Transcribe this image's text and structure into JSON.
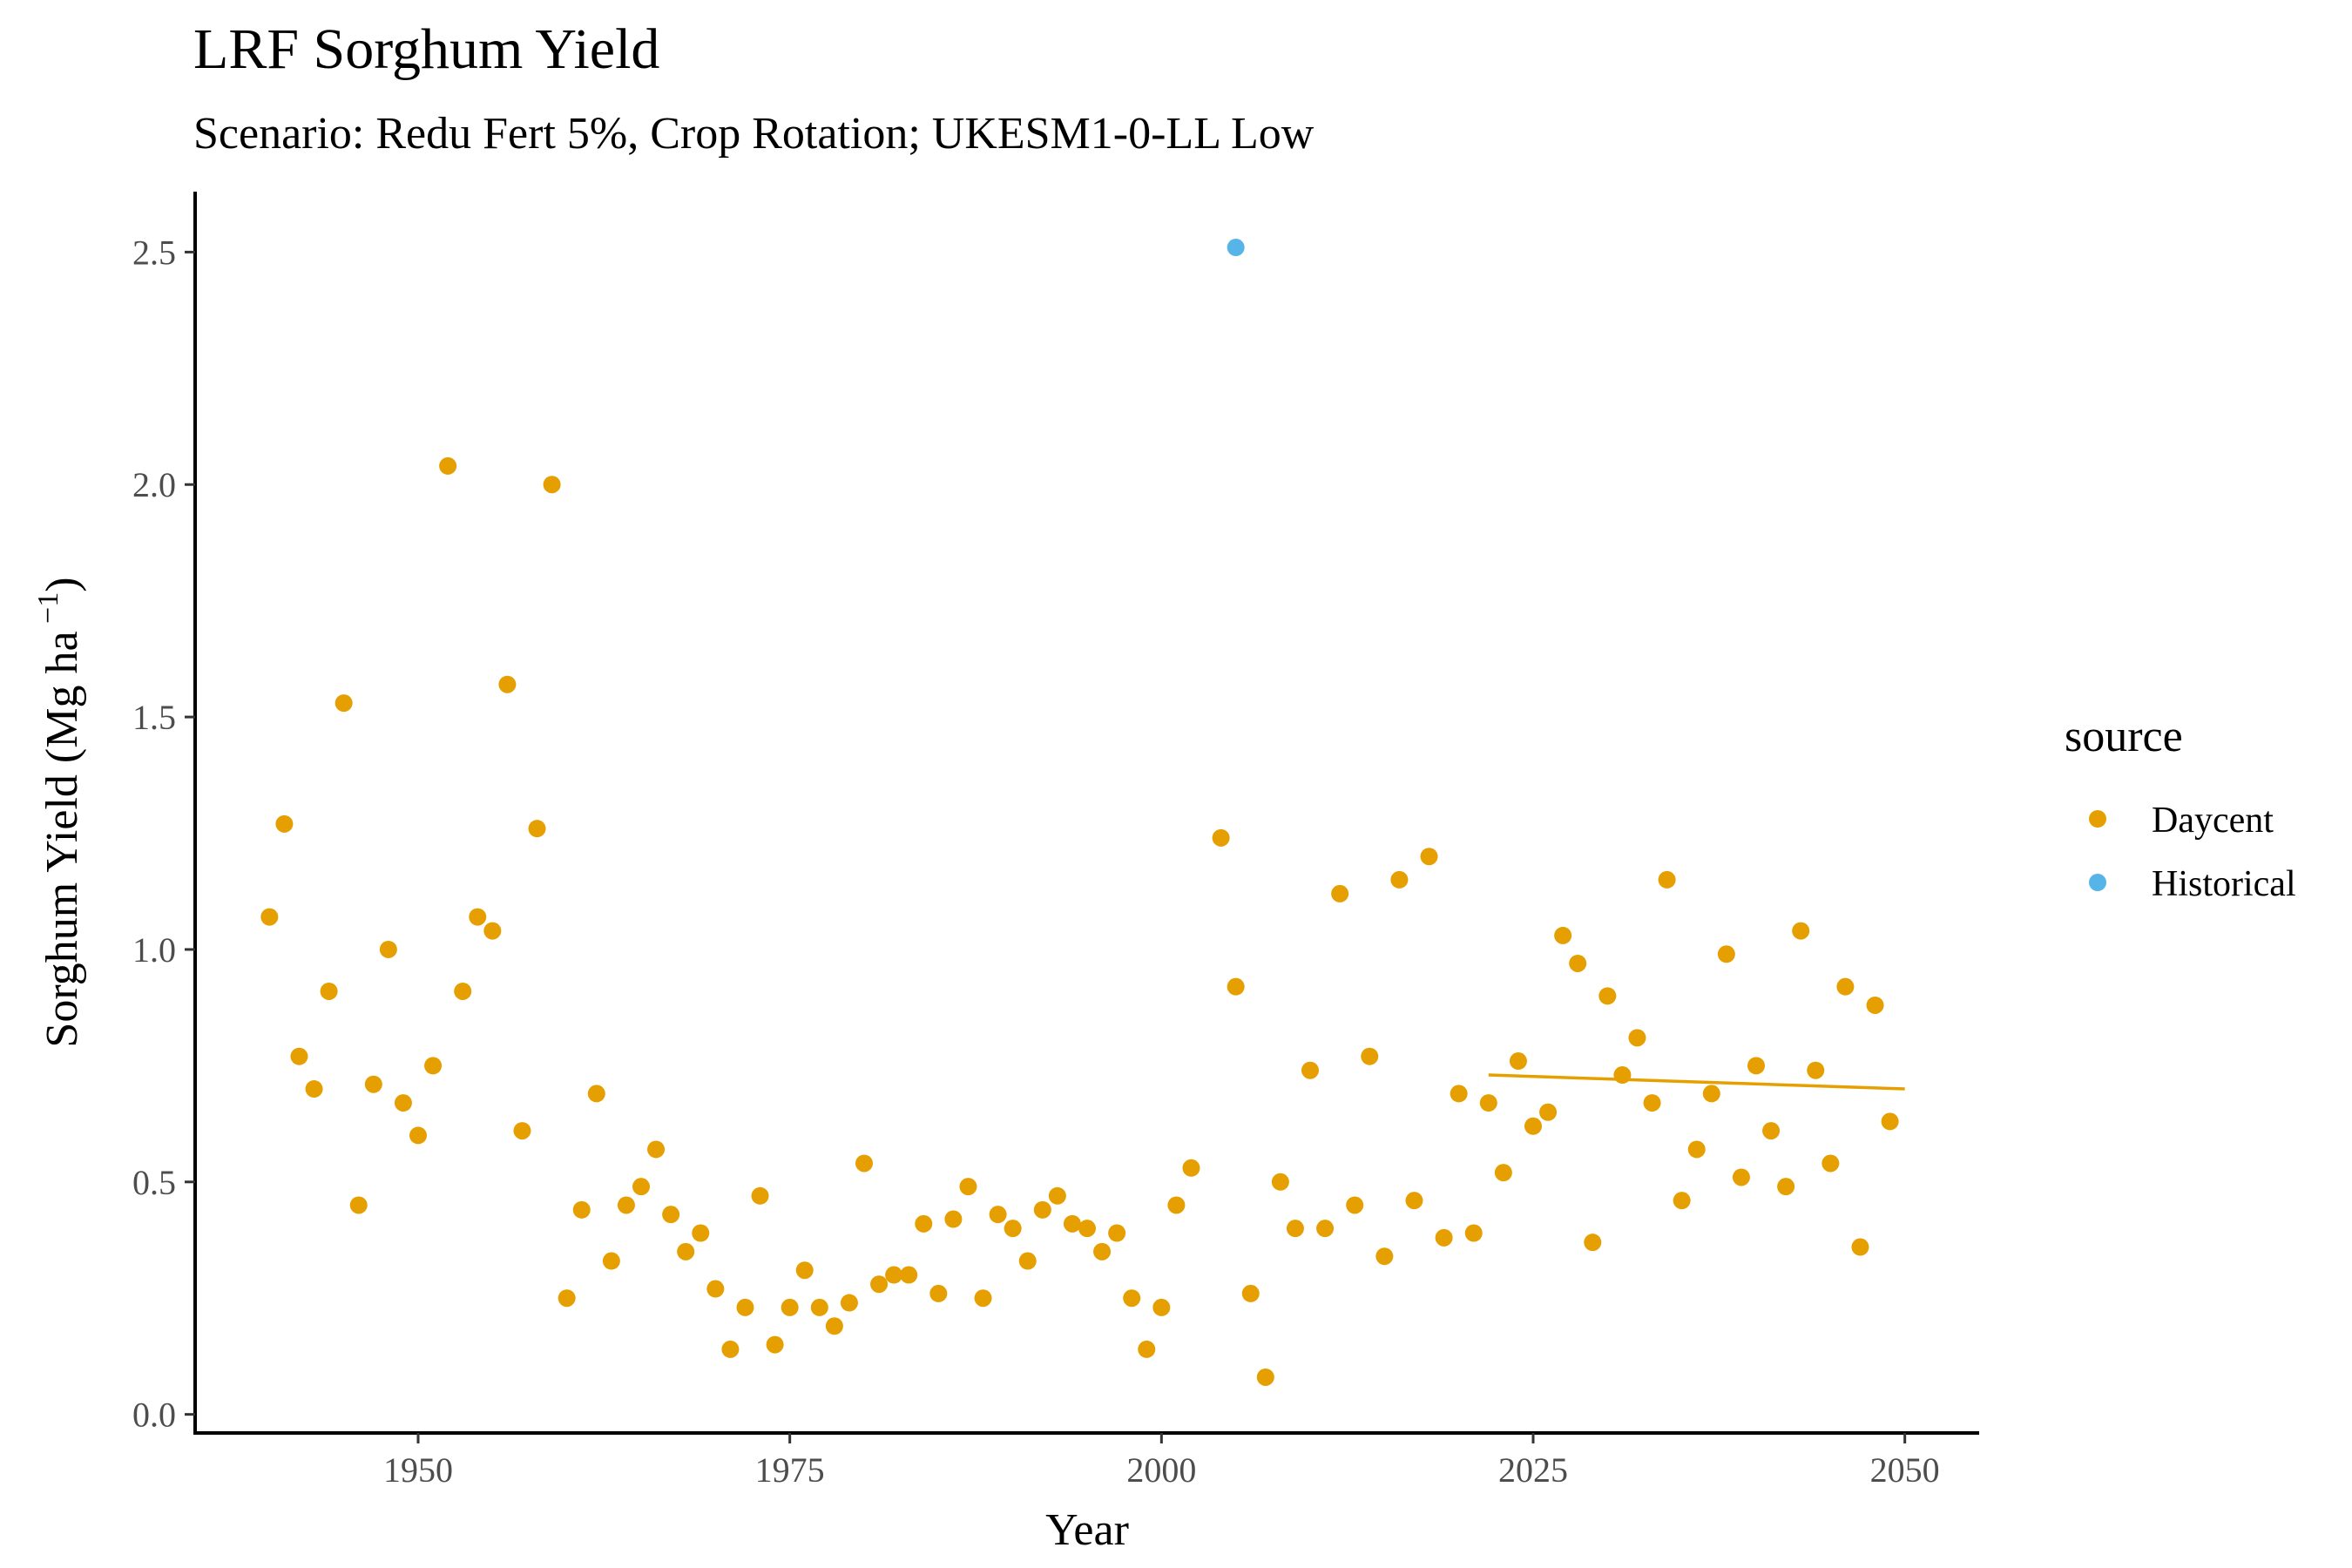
{
  "chart_data": {
    "type": "scatter",
    "title": "LRF Sorghum Yield",
    "subtitle": "Scenario: Redu Fert 5%, Crop Rotation; UKESM1-0-LL Low",
    "xlabel": "Year",
    "ylabel_main": "Sorghum Yield (Mg ha",
    "ylabel_sup": " −1",
    "ylabel_close": ")",
    "xlim": [
      1935,
      2055
    ],
    "ylim": [
      -0.04,
      2.63
    ],
    "xticks": [
      1950,
      1975,
      2000,
      2025,
      2050
    ],
    "yticks": [
      0.0,
      0.5,
      1.0,
      1.5,
      2.0,
      2.5
    ],
    "ytick_labels": [
      "0.0",
      "0.5",
      "1.0",
      "1.5",
      "2.0",
      "2.5"
    ],
    "grid": false,
    "legend": {
      "title": "source",
      "position": "right",
      "entries": [
        {
          "label": "Daycent",
          "color": "#E69F00"
        },
        {
          "label": "Historical",
          "color": "#56B4E9"
        }
      ]
    },
    "series": [
      {
        "name": "Daycent",
        "color": "#E69F00",
        "points": [
          [
            1940,
            1.07
          ],
          [
            1941,
            1.27
          ],
          [
            1942,
            0.77
          ],
          [
            1943,
            0.7
          ],
          [
            1944,
            0.91
          ],
          [
            1945,
            1.53
          ],
          [
            1946,
            0.45
          ],
          [
            1947,
            0.71
          ],
          [
            1948,
            1.0
          ],
          [
            1949,
            0.67
          ],
          [
            1950,
            0.6
          ],
          [
            1951,
            0.75
          ],
          [
            1952,
            2.04
          ],
          [
            1953,
            0.91
          ],
          [
            1954,
            1.07
          ],
          [
            1955,
            1.04
          ],
          [
            1956,
            1.57
          ],
          [
            1957,
            0.61
          ],
          [
            1958,
            1.26
          ],
          [
            1959,
            2.0
          ],
          [
            1960,
            0.25
          ],
          [
            1961,
            0.44
          ],
          [
            1962,
            0.69
          ],
          [
            1963,
            0.33
          ],
          [
            1964,
            0.45
          ],
          [
            1965,
            0.49
          ],
          [
            1966,
            0.57
          ],
          [
            1967,
            0.43
          ],
          [
            1968,
            0.35
          ],
          [
            1969,
            0.39
          ],
          [
            1970,
            0.27
          ],
          [
            1971,
            0.14
          ],
          [
            1972,
            0.23
          ],
          [
            1973,
            0.47
          ],
          [
            1974,
            0.15
          ],
          [
            1975,
            0.23
          ],
          [
            1976,
            0.31
          ],
          [
            1977,
            0.23
          ],
          [
            1978,
            0.19
          ],
          [
            1979,
            0.24
          ],
          [
            1980,
            0.54
          ],
          [
            1981,
            0.28
          ],
          [
            1982,
            0.3
          ],
          [
            1983,
            0.3
          ],
          [
            1984,
            0.41
          ],
          [
            1985,
            0.26
          ],
          [
            1986,
            0.42
          ],
          [
            1987,
            0.49
          ],
          [
            1988,
            0.25
          ],
          [
            1989,
            0.43
          ],
          [
            1990,
            0.4
          ],
          [
            1991,
            0.33
          ],
          [
            1992,
            0.44
          ],
          [
            1993,
            0.47
          ],
          [
            1994,
            0.41
          ],
          [
            1995,
            0.4
          ],
          [
            1996,
            0.35
          ],
          [
            1997,
            0.39
          ],
          [
            1998,
            0.25
          ],
          [
            1999,
            0.14
          ],
          [
            2000,
            0.23
          ],
          [
            2001,
            0.45
          ],
          [
            2002,
            0.53
          ],
          [
            2004,
            1.24
          ],
          [
            2005,
            0.92
          ],
          [
            2006,
            0.26
          ],
          [
            2007,
            0.08
          ],
          [
            2008,
            0.5
          ],
          [
            2009,
            0.4
          ],
          [
            2010,
            0.74
          ],
          [
            2011,
            0.4
          ],
          [
            2012,
            1.12
          ],
          [
            2013,
            0.45
          ],
          [
            2014,
            0.77
          ],
          [
            2015,
            0.34
          ],
          [
            2016,
            1.15
          ],
          [
            2017,
            0.46
          ],
          [
            2018,
            1.2
          ],
          [
            2019,
            0.38
          ],
          [
            2020,
            0.69
          ],
          [
            2021,
            0.39
          ],
          [
            2022,
            0.67
          ],
          [
            2023,
            0.52
          ],
          [
            2024,
            0.76
          ],
          [
            2025,
            0.62
          ],
          [
            2026,
            0.65
          ],
          [
            2027,
            1.03
          ],
          [
            2028,
            0.97
          ],
          [
            2029,
            0.37
          ],
          [
            2030,
            0.9
          ],
          [
            2031,
            0.73
          ],
          [
            2032,
            0.81
          ],
          [
            2033,
            0.67
          ],
          [
            2034,
            1.15
          ],
          [
            2035,
            0.46
          ],
          [
            2036,
            0.57
          ],
          [
            2037,
            0.69
          ],
          [
            2038,
            0.99
          ],
          [
            2039,
            0.51
          ],
          [
            2040,
            0.75
          ],
          [
            2041,
            0.61
          ],
          [
            2042,
            0.49
          ],
          [
            2043,
            1.04
          ],
          [
            2044,
            0.74
          ],
          [
            2045,
            0.54
          ],
          [
            2046,
            0.92
          ],
          [
            2047,
            0.36
          ],
          [
            2048,
            0.88
          ],
          [
            2049,
            0.63
          ]
        ]
      },
      {
        "name": "Historical",
        "color": "#56B4E9",
        "points": [
          [
            2005,
            2.51
          ]
        ]
      }
    ],
    "trend_line": {
      "series": "Daycent",
      "color": "#E69F00",
      "points": [
        [
          2022,
          0.73
        ],
        [
          2050,
          0.7
        ]
      ]
    }
  }
}
